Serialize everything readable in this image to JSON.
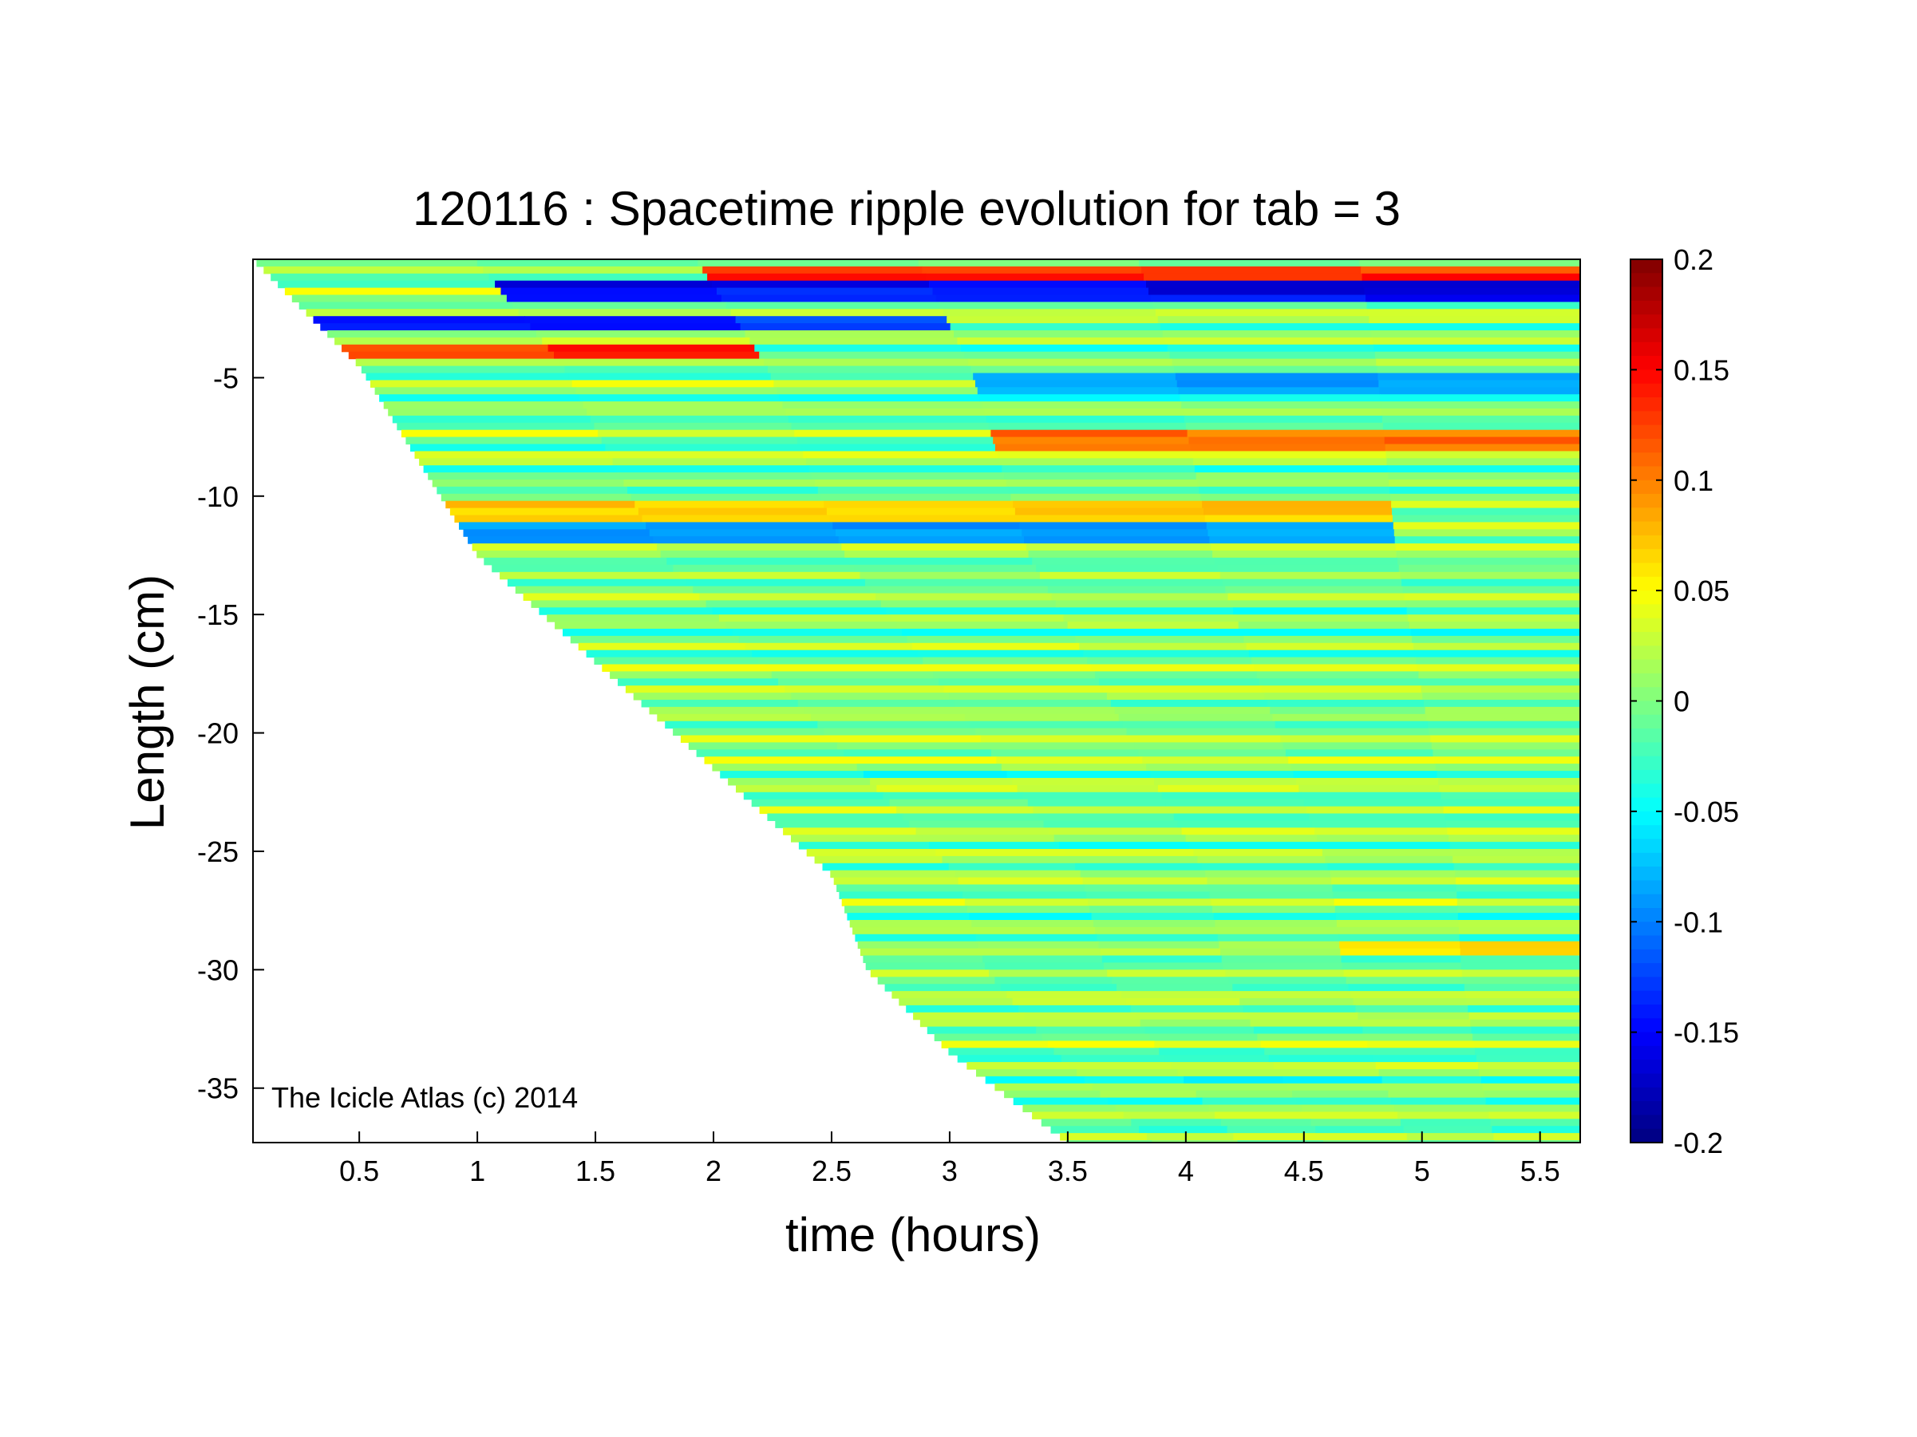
{
  "chart_data": {
    "type": "heatmap",
    "title": "120116 : Spacetime ripple evolution for tab = 3",
    "xlabel": "time (hours)",
    "ylabel": "Length (cm)",
    "xlim": [
      0.05,
      5.67
    ],
    "ylim": [
      -37.3,
      0
    ],
    "xticks": [
      0.5,
      1,
      1.5,
      2,
      2.5,
      3,
      3.5,
      4,
      4.5,
      5,
      5.5
    ],
    "xtick_labels": [
      "0.5",
      "1",
      "1.5",
      "2",
      "2.5",
      "3",
      "3.5",
      "4",
      "4.5",
      "5",
      "5.5"
    ],
    "yticks": [
      -5,
      -10,
      -15,
      -20,
      -25,
      -30,
      -35
    ],
    "ytick_labels": [
      "-5",
      "-10",
      "-15",
      "-20",
      "-25",
      "-30",
      "-35"
    ],
    "colorbar": {
      "colormap": "jet",
      "clim": [
        -0.2,
        0.2
      ],
      "ticks": [
        0.2,
        0.15,
        0.1,
        0.05,
        0,
        -0.05,
        -0.1,
        -0.15,
        -0.2
      ],
      "tick_labels": [
        "0.2",
        "0.15",
        "0.1",
        "0.05",
        "0",
        "-0.05",
        "-0.1",
        "-0.15",
        "-0.2"
      ]
    },
    "annotation": "The Icicle Atlas (c) 2014",
    "grid": false,
    "growth_front": {
      "description_points_time_hours": [
        0.05,
        0.5,
        1.0,
        1.5,
        2.0,
        2.5,
        2.65,
        3.0,
        3.5
      ],
      "length_cm": [
        0,
        -4.5,
        -12.5,
        -17.0,
        -21.5,
        -26.0,
        -30.0,
        -33.5,
        -37.3
      ]
    },
    "prominent_bands": [
      {
        "length_cm": -0.6,
        "t_start": 2.0,
        "t_end": 5.6,
        "value": 0.15
      },
      {
        "length_cm": -1.3,
        "t_start": 1.5,
        "t_end": 5.6,
        "value": -0.17
      },
      {
        "length_cm": -2.7,
        "t_start": 0.5,
        "t_end": 3.0,
        "value": -0.15
      },
      {
        "length_cm": -3.9,
        "t_start": 0.3,
        "t_end": 2.0,
        "value": 0.15
      },
      {
        "length_cm": -5.2,
        "t_start": 3.0,
        "t_end": 5.6,
        "value": -0.1
      },
      {
        "length_cm": -7.6,
        "t_start": 3.0,
        "t_end": 5.6,
        "value": 0.12
      },
      {
        "length_cm": -10.6,
        "t_start": 1.0,
        "t_end": 5.0,
        "value": 0.08
      },
      {
        "length_cm": -11.5,
        "t_start": 1.0,
        "t_end": 5.0,
        "value": -0.1
      },
      {
        "length_cm": -29.1,
        "t_start": 4.8,
        "t_end": 5.6,
        "value": 0.07
      }
    ]
  }
}
